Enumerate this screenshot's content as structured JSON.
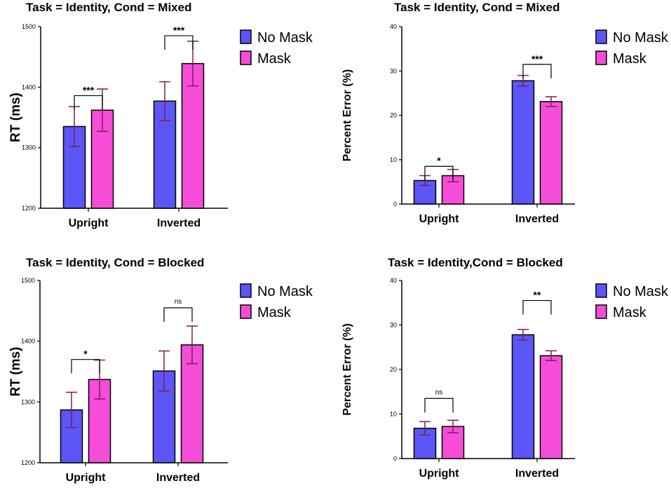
{
  "colors": {
    "no_mask": "#5b56f5",
    "mask": "#f54dd8",
    "error_bar": "#7a1f5a",
    "axis": "#000000"
  },
  "chart_data": [
    {
      "type": "bar",
      "title": "Task = Identity, Cond = Mixed",
      "ylabel": "RT (ms)",
      "xlabel": "",
      "ylim": [
        1200,
        1500
      ],
      "yticks": [
        1200,
        1300,
        1400,
        1500
      ],
      "categories": [
        "Upright",
        "Inverted"
      ],
      "series": [
        {
          "name": "No Mask",
          "values": [
            1335,
            1377
          ],
          "errors": [
            33,
            32
          ]
        },
        {
          "name": "Mask",
          "values": [
            1362,
            1439
          ],
          "errors": [
            35,
            37
          ]
        }
      ],
      "significance": [
        {
          "category": "Upright",
          "label": "***",
          "y": 1386
        },
        {
          "category": "Inverted",
          "label": "***",
          "y": 1485
        }
      ],
      "legend": [
        "No Mask",
        "Mask"
      ]
    },
    {
      "type": "bar",
      "title": "Task = Identity, Cond = Mixed",
      "ylabel": "Percent Error (%)",
      "xlabel": "",
      "ylim": [
        0,
        40
      ],
      "yticks": [
        0,
        10,
        20,
        30,
        40
      ],
      "categories": [
        "Upright",
        "Inverted"
      ],
      "series": [
        {
          "name": "No Mask",
          "values": [
            5.3,
            27.8
          ],
          "errors": [
            1.1,
            1.2
          ]
        },
        {
          "name": "Mask",
          "values": [
            6.4,
            23.1
          ],
          "errors": [
            1.4,
            1.1
          ]
        }
      ],
      "significance": [
        {
          "category": "Upright",
          "label": "*",
          "y": 8.5
        },
        {
          "category": "Inverted",
          "label": "***",
          "y": 31.5
        }
      ],
      "legend": [
        "No Mask",
        "Mask"
      ]
    },
    {
      "type": "bar",
      "title": "Task = Identity, Cond = Blocked",
      "ylabel": "RT (ms)",
      "xlabel": "",
      "ylim": [
        1200,
        1500
      ],
      "yticks": [
        1200,
        1300,
        1400,
        1500
      ],
      "categories": [
        "Upright",
        "Inverted"
      ],
      "series": [
        {
          "name": "No Mask",
          "values": [
            1287,
            1351
          ],
          "errors": [
            29,
            33
          ]
        },
        {
          "name": "Mask",
          "values": [
            1337,
            1394
          ],
          "errors": [
            32,
            31
          ]
        }
      ],
      "significance": [
        {
          "category": "Upright",
          "label": "*",
          "y": 1370
        },
        {
          "category": "Inverted",
          "label": "ns",
          "y": 1455
        }
      ],
      "legend": [
        "No Mask",
        "Mask"
      ]
    },
    {
      "type": "bar",
      "title": "Task = Identity,Cond = Blocked",
      "ylabel": "Percent Error (%)",
      "xlabel": "",
      "ylim": [
        0,
        40
      ],
      "yticks": [
        0,
        10,
        20,
        30,
        40
      ],
      "categories": [
        "Upright",
        "Inverted"
      ],
      "series": [
        {
          "name": "No Mask",
          "values": [
            6.8,
            27.8
          ],
          "errors": [
            1.5,
            1.2
          ]
        },
        {
          "name": "Mask",
          "values": [
            7.2,
            23.1
          ],
          "errors": [
            1.4,
            1.1
          ]
        }
      ],
      "significance": [
        {
          "category": "Upright",
          "label": "ns",
          "y": 13.5
        },
        {
          "category": "Inverted",
          "label": "**",
          "y": 35.5
        }
      ],
      "legend": [
        "No Mask",
        "Mask"
      ]
    }
  ]
}
